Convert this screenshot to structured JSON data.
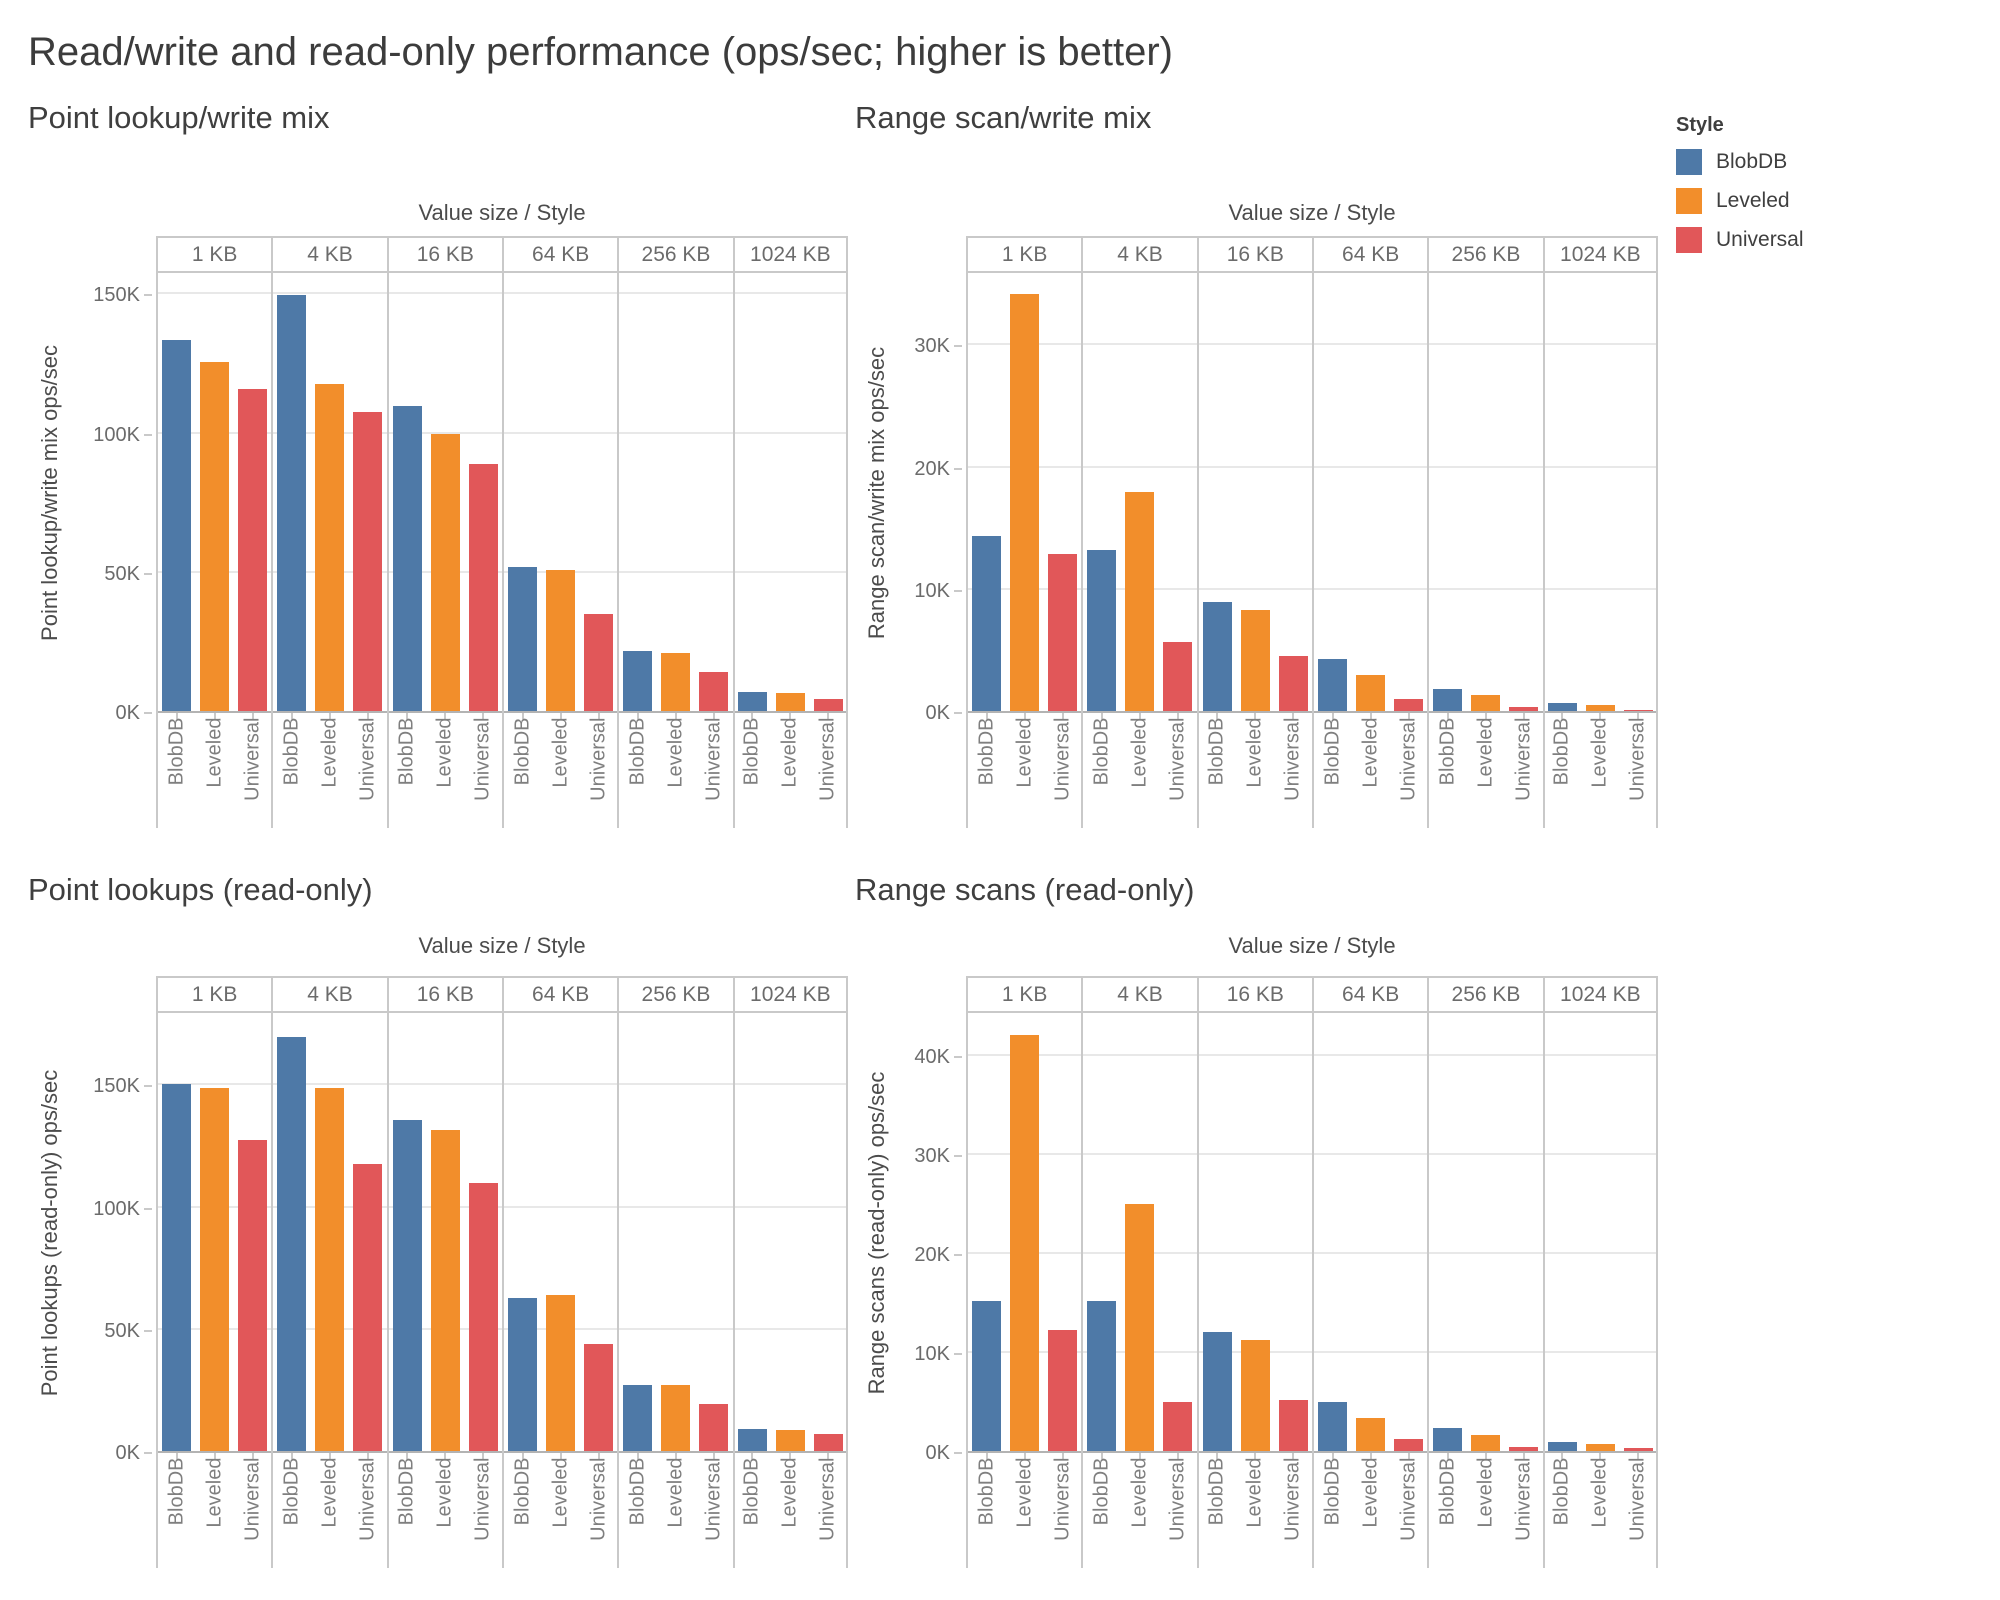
{
  "title": "Read/write and read-only performance (ops/sec; higher is better)",
  "legend": {
    "title": "Style",
    "items": [
      {
        "label": "BlobDB",
        "color": "#4e79a7"
      },
      {
        "label": "Leveled",
        "color": "#f28e2b"
      },
      {
        "label": "Universal",
        "color": "#e15759"
      }
    ]
  },
  "colors": {
    "blobdb": "#4e79a7",
    "leveled": "#f28e2b",
    "universal": "#e15759"
  },
  "chart_data": [
    {
      "type": "bar",
      "title": "Point lookup/write mix",
      "column_header": "Value size  /  Style",
      "categories": [
        "1 KB",
        "4 KB",
        "16 KB",
        "64 KB",
        "256 KB",
        "1024 KB"
      ],
      "ylabel": "Point lookup/write mix ops/sec",
      "ymax": 158000,
      "yticks": [
        {
          "v": 0,
          "label": "0K"
        },
        {
          "v": 50000,
          "label": "50K"
        },
        {
          "v": 100000,
          "label": "100K"
        },
        {
          "v": 150000,
          "label": "150K"
        }
      ],
      "series": [
        {
          "name": "BlobDB",
          "color": "#4e79a7",
          "values": [
            134000,
            150000,
            110000,
            52000,
            21500,
            7000
          ]
        },
        {
          "name": "Leveled",
          "color": "#f28e2b",
          "values": [
            126000,
            118000,
            100000,
            51000,
            21000,
            6500
          ]
        },
        {
          "name": "Universal",
          "color": "#e15759",
          "values": [
            116000,
            108000,
            89000,
            35000,
            14000,
            4500
          ]
        }
      ]
    },
    {
      "type": "bar",
      "title": "Range scan/write mix",
      "column_header": "Value size  /  Style",
      "categories": [
        "1 KB",
        "4 KB",
        "16 KB",
        "64 KB",
        "256 KB",
        "1024 KB"
      ],
      "ylabel": "Range scan/write mix ops/sec",
      "ymax": 36000,
      "yticks": [
        {
          "v": 0,
          "label": "0K"
        },
        {
          "v": 10000,
          "label": "10K"
        },
        {
          "v": 20000,
          "label": "20K"
        },
        {
          "v": 30000,
          "label": "30K"
        }
      ],
      "series": [
        {
          "name": "BlobDB",
          "color": "#4e79a7",
          "values": [
            14400,
            13200,
            9000,
            4300,
            1800,
            650
          ]
        },
        {
          "name": "Leveled",
          "color": "#f28e2b",
          "values": [
            34300,
            18000,
            8300,
            3000,
            1300,
            500
          ]
        },
        {
          "name": "Universal",
          "color": "#e15759",
          "values": [
            12900,
            5700,
            4500,
            1000,
            300,
            120
          ]
        }
      ]
    },
    {
      "type": "bar",
      "title": "Point lookups (read-only)",
      "column_header": "Value size  /  Style",
      "categories": [
        "1 KB",
        "4 KB",
        "16 KB",
        "64 KB",
        "256 KB",
        "1024 KB"
      ],
      "ylabel": "Point lookups (read-only) ops/sec",
      "ymax": 180000,
      "yticks": [
        {
          "v": 0,
          "label": "0K"
        },
        {
          "v": 50000,
          "label": "50K"
        },
        {
          "v": 100000,
          "label": "100K"
        },
        {
          "v": 150000,
          "label": "150K"
        }
      ],
      "series": [
        {
          "name": "BlobDB",
          "color": "#4e79a7",
          "values": [
            151000,
            170000,
            136000,
            63000,
            27000,
            9000
          ]
        },
        {
          "name": "Leveled",
          "color": "#f28e2b",
          "values": [
            149000,
            149000,
            132000,
            64000,
            27000,
            8500
          ]
        },
        {
          "name": "Universal",
          "color": "#e15759",
          "values": [
            128000,
            118000,
            110000,
            44000,
            19500,
            7000
          ]
        }
      ]
    },
    {
      "type": "bar",
      "title": "Range scans (read-only)",
      "column_header": "Value size  /  Style",
      "categories": [
        "1 KB",
        "4 KB",
        "16 KB",
        "64 KB",
        "256 KB",
        "1024 KB"
      ],
      "ylabel": "Range scans (read-only) ops/sec",
      "ymax": 44400,
      "yticks": [
        {
          "v": 0,
          "label": "0K"
        },
        {
          "v": 10000,
          "label": "10K"
        },
        {
          "v": 20000,
          "label": "20K"
        },
        {
          "v": 30000,
          "label": "30K"
        },
        {
          "v": 40000,
          "label": "40K"
        }
      ],
      "series": [
        {
          "name": "BlobDB",
          "color": "#4e79a7",
          "values": [
            15200,
            15200,
            12100,
            5000,
            2300,
            900
          ]
        },
        {
          "name": "Leveled",
          "color": "#f28e2b",
          "values": [
            42200,
            25000,
            11300,
            3300,
            1600,
            700
          ]
        },
        {
          "name": "Universal",
          "color": "#e15759",
          "values": [
            12300,
            5000,
            5200,
            1200,
            450,
            300
          ]
        }
      ]
    }
  ]
}
